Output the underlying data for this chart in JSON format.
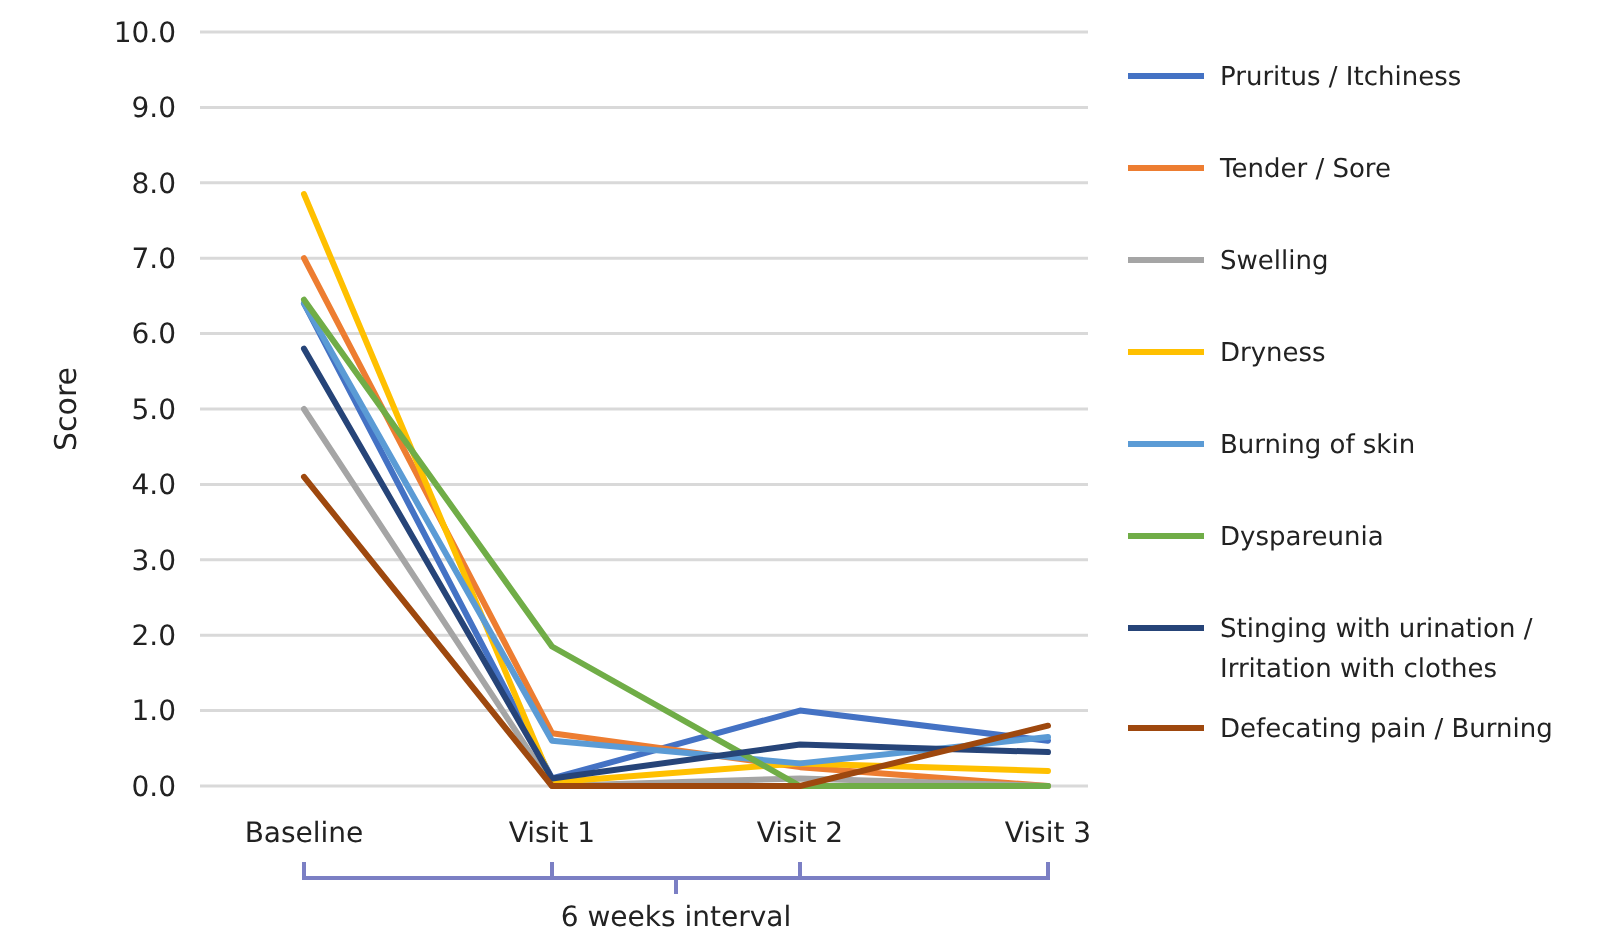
{
  "chart_data": {
    "type": "line",
    "ylabel": "Score",
    "categories": [
      "Baseline",
      "Visit 1",
      "Visit  2",
      "Visit 3"
    ],
    "ylim": [
      0,
      10
    ],
    "yticks": [
      {
        "value": 0,
        "label": "0.0"
      },
      {
        "value": 1,
        "label": "1.0"
      },
      {
        "value": 2,
        "label": "2.0"
      },
      {
        "value": 3,
        "label": "3.0"
      },
      {
        "value": 4,
        "label": "4.0"
      },
      {
        "value": 5,
        "label": "5.0"
      },
      {
        "value": 6,
        "label": "6.0"
      },
      {
        "value": 7,
        "label": "7.0"
      },
      {
        "value": 8,
        "label": "8.0"
      },
      {
        "value": 9,
        "label": "9.0"
      },
      {
        "value": 10,
        "label": "10.0"
      }
    ],
    "grid": "y",
    "legend": "right",
    "marker": "none",
    "line_style": "solid",
    "annotations": [
      "6 weeks interval"
    ],
    "series": [
      {
        "name": "Pruritus  / Itchiness",
        "color": "#4472c4",
        "values": [
          6.4,
          0.1,
          1.0,
          0.6
        ]
      },
      {
        "name": "Tender / Sore",
        "color": "#ed7d31",
        "values": [
          7.0,
          0.7,
          0.25,
          0.0
        ]
      },
      {
        "name": "Swelling",
        "color": "#a5a5a5",
        "values": [
          5.0,
          0.0,
          0.1,
          0.0
        ]
      },
      {
        "name": "Dryness",
        "color": "#ffc000",
        "values": [
          7.85,
          0.05,
          0.3,
          0.2
        ]
      },
      {
        "name": "Burning of skin",
        "color": "#5b9bd5",
        "values": [
          6.4,
          0.6,
          0.3,
          0.65
        ]
      },
      {
        "name": "Dyspareunia",
        "color": "#70ad47",
        "values": [
          6.45,
          1.85,
          0.0,
          0.0
        ]
      },
      {
        "name": "Stinging with urination / Irritation with clothes",
        "color": "#264478",
        "values": [
          5.8,
          0.1,
          0.55,
          0.45
        ]
      },
      {
        "name": "Defecating pain / Burning",
        "color": "#9e480e",
        "values": [
          4.1,
          0.0,
          0.0,
          0.8
        ]
      }
    ]
  }
}
